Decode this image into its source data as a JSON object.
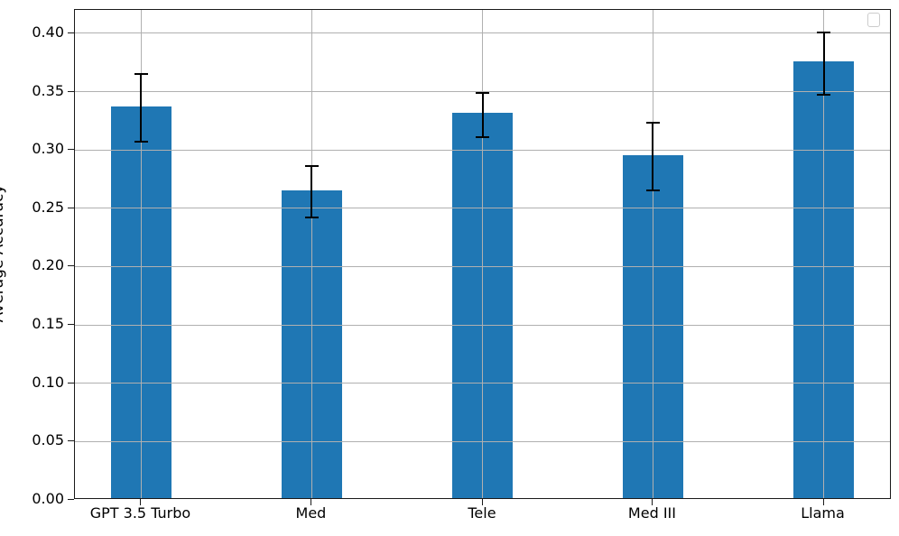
{
  "figure": {
    "background": "#ffffff"
  },
  "chart_data": {
    "type": "bar",
    "title": "",
    "xlabel": "",
    "ylabel": "Average Accuracy",
    "categories": [
      "GPT 3.5 Turbo",
      "Med",
      "Tele",
      "Med III",
      "Llama"
    ],
    "values": [
      0.336,
      0.264,
      0.33,
      0.294,
      0.374
    ],
    "errors": [
      0.029,
      0.022,
      0.019,
      0.029,
      0.027
    ],
    "ylim": [
      0,
      0.42
    ],
    "ytick_labels": [
      "0.00",
      "0.05",
      "0.10",
      "0.15",
      "0.20",
      "0.25",
      "0.30",
      "0.35",
      "0.40"
    ],
    "grid": true,
    "legend": {
      "visible": true,
      "entries": []
    },
    "colors": {
      "bar": "#1f77b4",
      "error_bar": "#000000",
      "grid": "#b0b0b0",
      "spine": "#1a1a1a",
      "text": "#000000",
      "legend_border": "#cccccc"
    }
  }
}
